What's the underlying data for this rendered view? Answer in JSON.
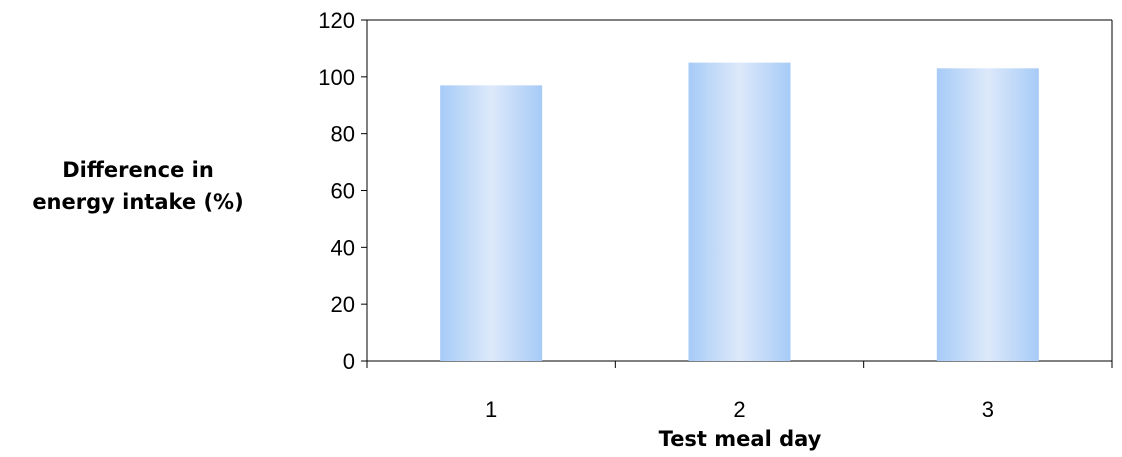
{
  "chart_data": {
    "type": "bar",
    "categories": [
      "1",
      "2",
      "3"
    ],
    "values": [
      97,
      105,
      103
    ],
    "xlabel": "Test meal day",
    "ylabel_lines": [
      "Difference in",
      "energy intake (%)"
    ],
    "ylim": [
      0,
      120
    ],
    "yticks": [
      "0",
      "20",
      "40",
      "60",
      "80",
      "100",
      "120"
    ],
    "grid": false,
    "legend": "none",
    "colors": {
      "bar_edge": "#a6cbf7",
      "bar_center": "#dde9fa",
      "axis": "#000000"
    }
  }
}
